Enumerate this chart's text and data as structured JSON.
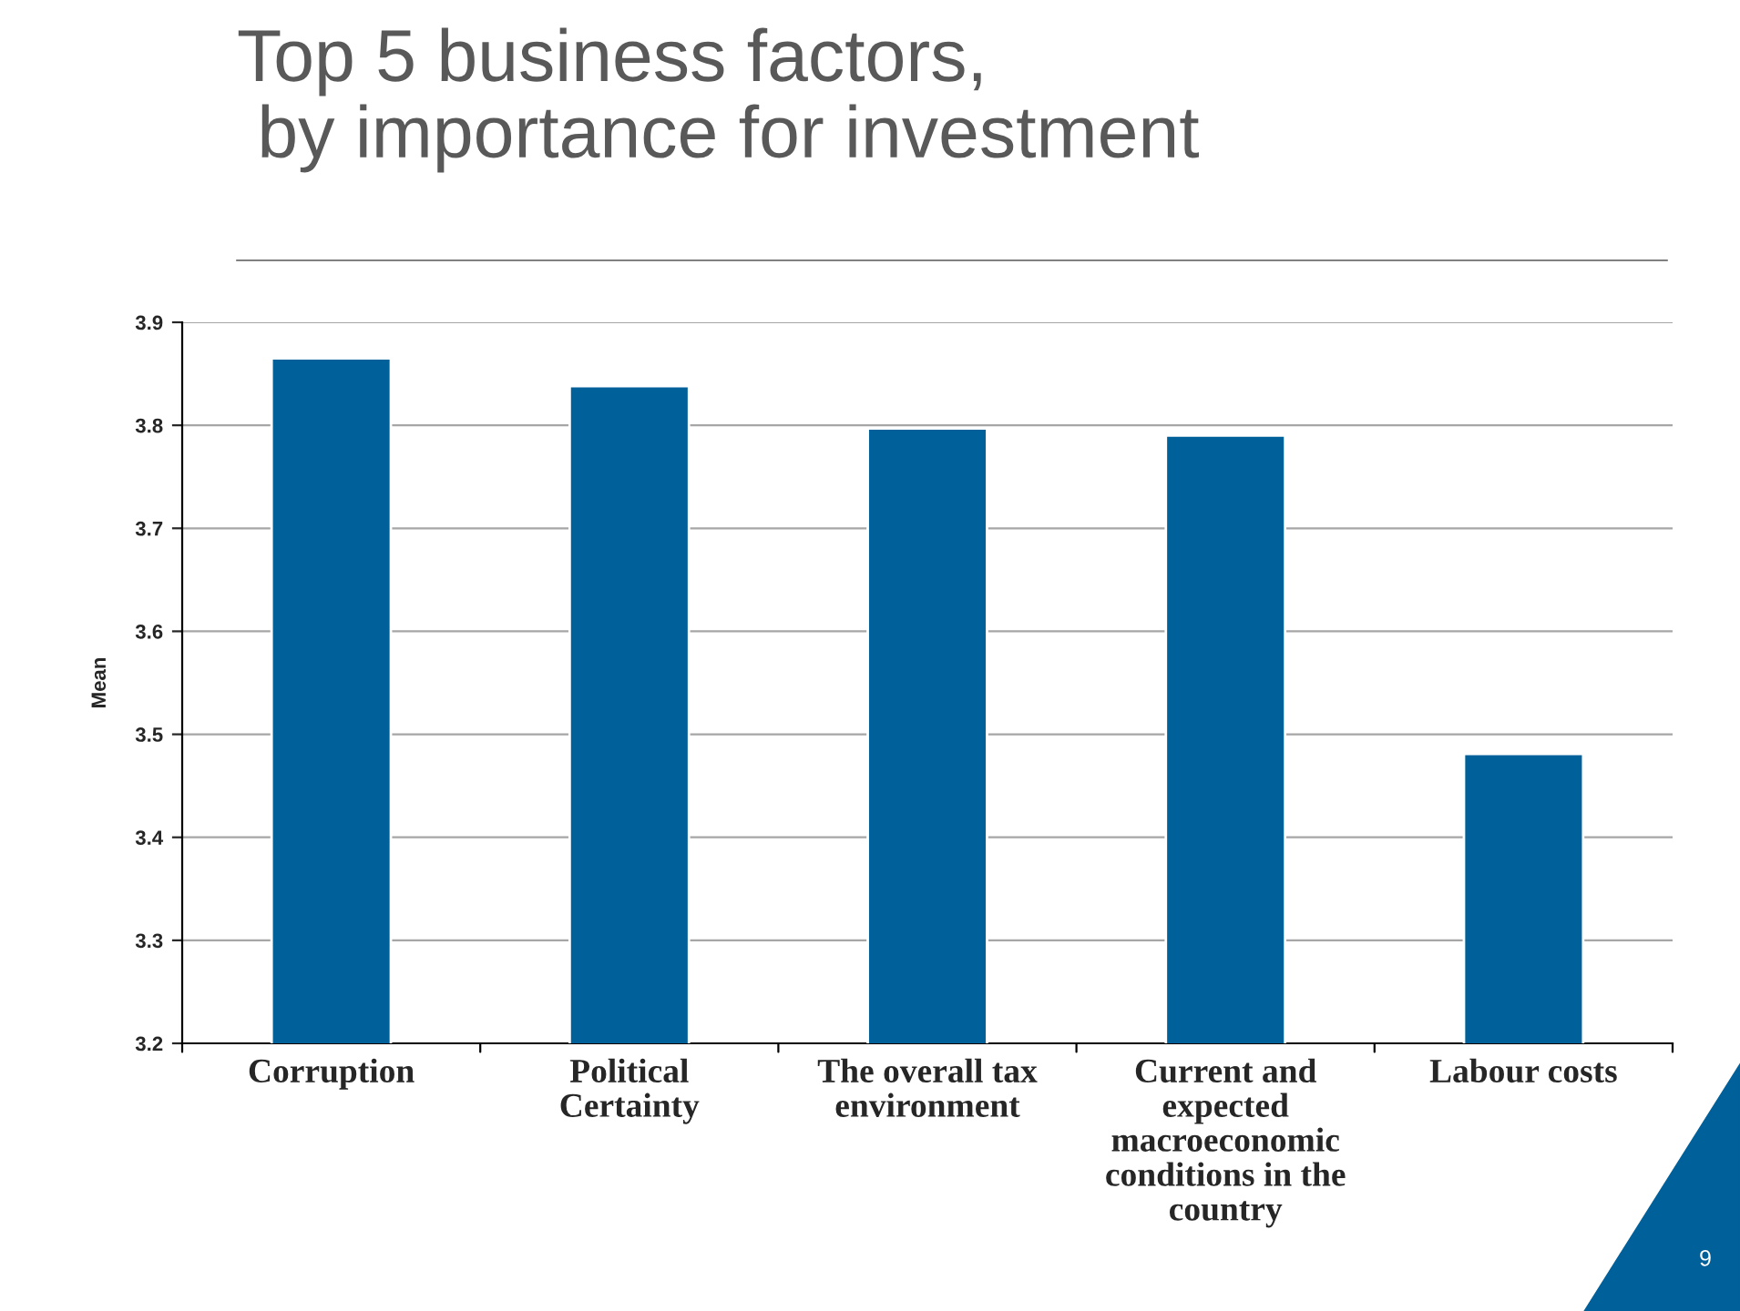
{
  "chart_data": {
    "type": "bar",
    "title": "Top 5 business factors,\n by importance for investment",
    "ylabel": "Mean",
    "categories": [
      "Corruption",
      "Political\nCertainty",
      "The overall tax\nenvironment",
      "Current and\nexpected\nmacroeconomic\nconditions in the\ncountry",
      "Labour costs"
    ],
    "values": [
      3.865,
      3.838,
      3.797,
      3.79,
      3.481
    ],
    "color": "#00609a",
    "ylim": [
      3.2,
      3.9
    ],
    "yticks": [
      3.2,
      3.3,
      3.4,
      3.5,
      3.6,
      3.7,
      3.8,
      3.9
    ],
    "grid": "y",
    "annotations": [
      "9"
    ]
  }
}
